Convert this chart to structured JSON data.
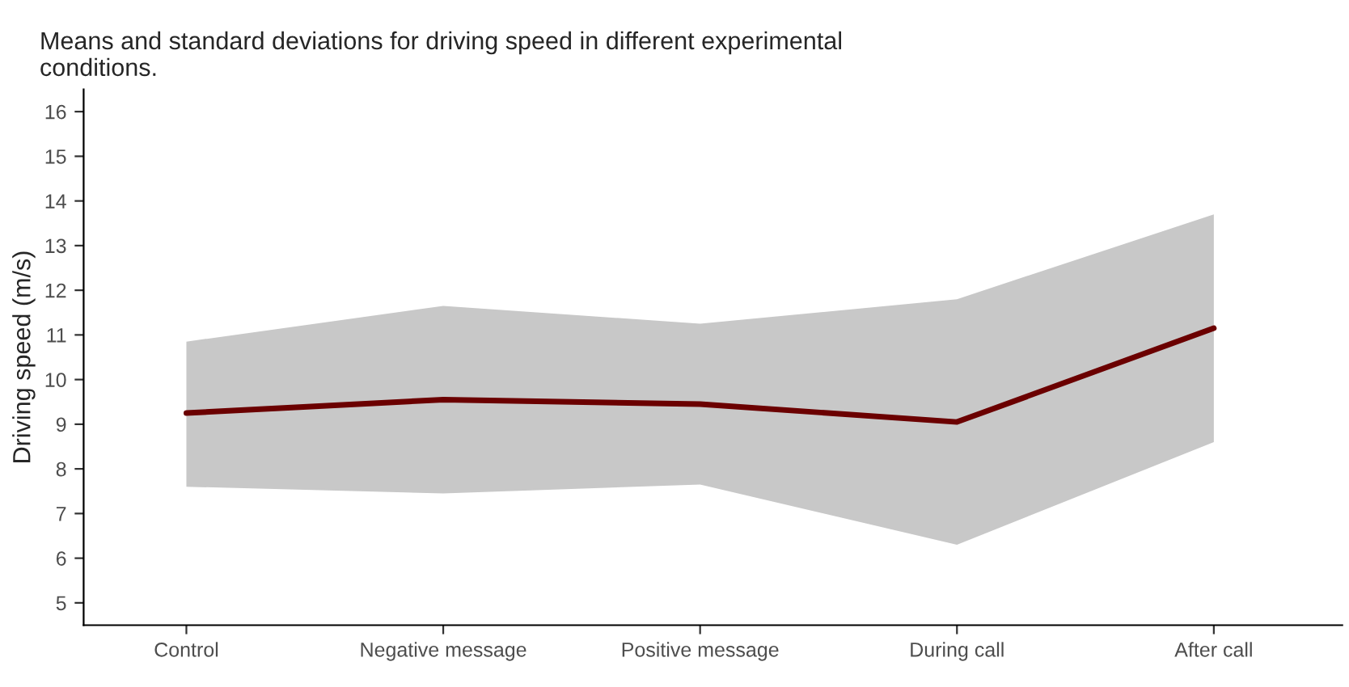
{
  "chart_data": {
    "type": "line",
    "title": "Means and standard deviations for driving speed in different experimental\nconditions.",
    "ylabel": "Driving speed (m/s)",
    "categories": [
      "Control",
      "Negative message",
      "Positive message",
      "During call",
      "After call"
    ],
    "series": [
      {
        "color": "#6b0000",
        "values": [
          9.25,
          9.55,
          9.45,
          9.05,
          11.15
        ],
        "lower": [
          7.6,
          7.45,
          7.65,
          6.3,
          8.6
        ],
        "upper": [
          10.85,
          11.65,
          11.25,
          11.8,
          13.7
        ]
      }
    ],
    "ylim": [
      4.5,
      16.5
    ],
    "yticks": [
      5,
      6,
      7,
      8,
      9,
      10,
      11,
      12,
      13,
      14,
      15,
      16
    ],
    "grid": false
  }
}
